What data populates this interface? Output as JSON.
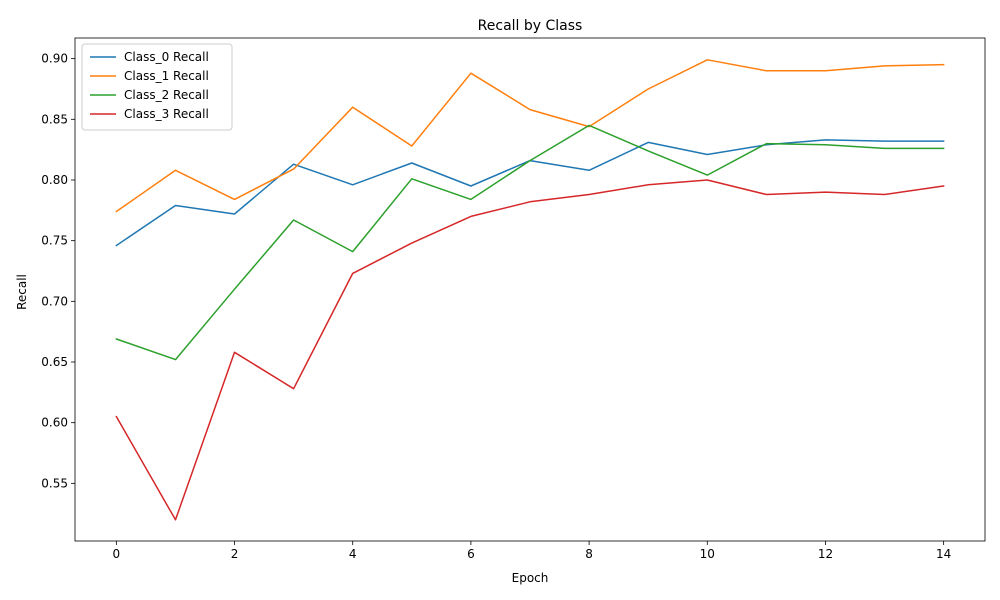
{
  "chart_data": {
    "type": "line",
    "title": "Recall by Class",
    "xlabel": "Epoch",
    "ylabel": "Recall",
    "x": [
      0,
      1,
      2,
      3,
      4,
      5,
      6,
      7,
      8,
      9,
      10,
      11,
      12,
      13,
      14
    ],
    "xlim": [
      -0.7,
      14.7
    ],
    "ylim": [
      0.5025,
      0.917
    ],
    "xticks": [
      0,
      2,
      4,
      6,
      8,
      10,
      12,
      14
    ],
    "yticks": [
      0.55,
      0.6,
      0.65,
      0.7,
      0.75,
      0.8,
      0.85,
      0.9
    ],
    "xtick_labels": [
      "0",
      "2",
      "4",
      "6",
      "8",
      "10",
      "12",
      "14"
    ],
    "ytick_labels": [
      "0.55",
      "0.60",
      "0.65",
      "0.70",
      "0.75",
      "0.80",
      "0.85",
      "0.90"
    ],
    "grid": false,
    "legend_position": "upper-left",
    "series": [
      {
        "name": "Class_0 Recall",
        "color": "#1f77b4",
        "values": [
          0.746,
          0.779,
          0.772,
          0.813,
          0.796,
          0.814,
          0.795,
          0.816,
          0.808,
          0.831,
          0.821,
          0.829,
          0.833,
          0.832,
          0.832
        ]
      },
      {
        "name": "Class_1 Recall",
        "color": "#ff7f0e",
        "values": [
          0.774,
          0.808,
          0.784,
          0.809,
          0.86,
          0.828,
          0.888,
          0.858,
          0.844,
          0.875,
          0.899,
          0.89,
          0.89,
          0.894,
          0.895
        ]
      },
      {
        "name": "Class_2 Recall",
        "color": "#2ca02c",
        "values": [
          0.669,
          0.652,
          0.71,
          0.767,
          0.741,
          0.801,
          0.784,
          0.816,
          0.845,
          0.824,
          0.804,
          0.83,
          0.829,
          0.826,
          0.826
        ]
      },
      {
        "name": "Class_3 Recall",
        "color": "#d62728",
        "values": [
          0.605,
          0.52,
          0.658,
          0.628,
          0.723,
          0.748,
          0.77,
          0.782,
          0.788,
          0.796,
          0.8,
          0.788,
          0.79,
          0.788,
          0.795
        ]
      }
    ]
  }
}
